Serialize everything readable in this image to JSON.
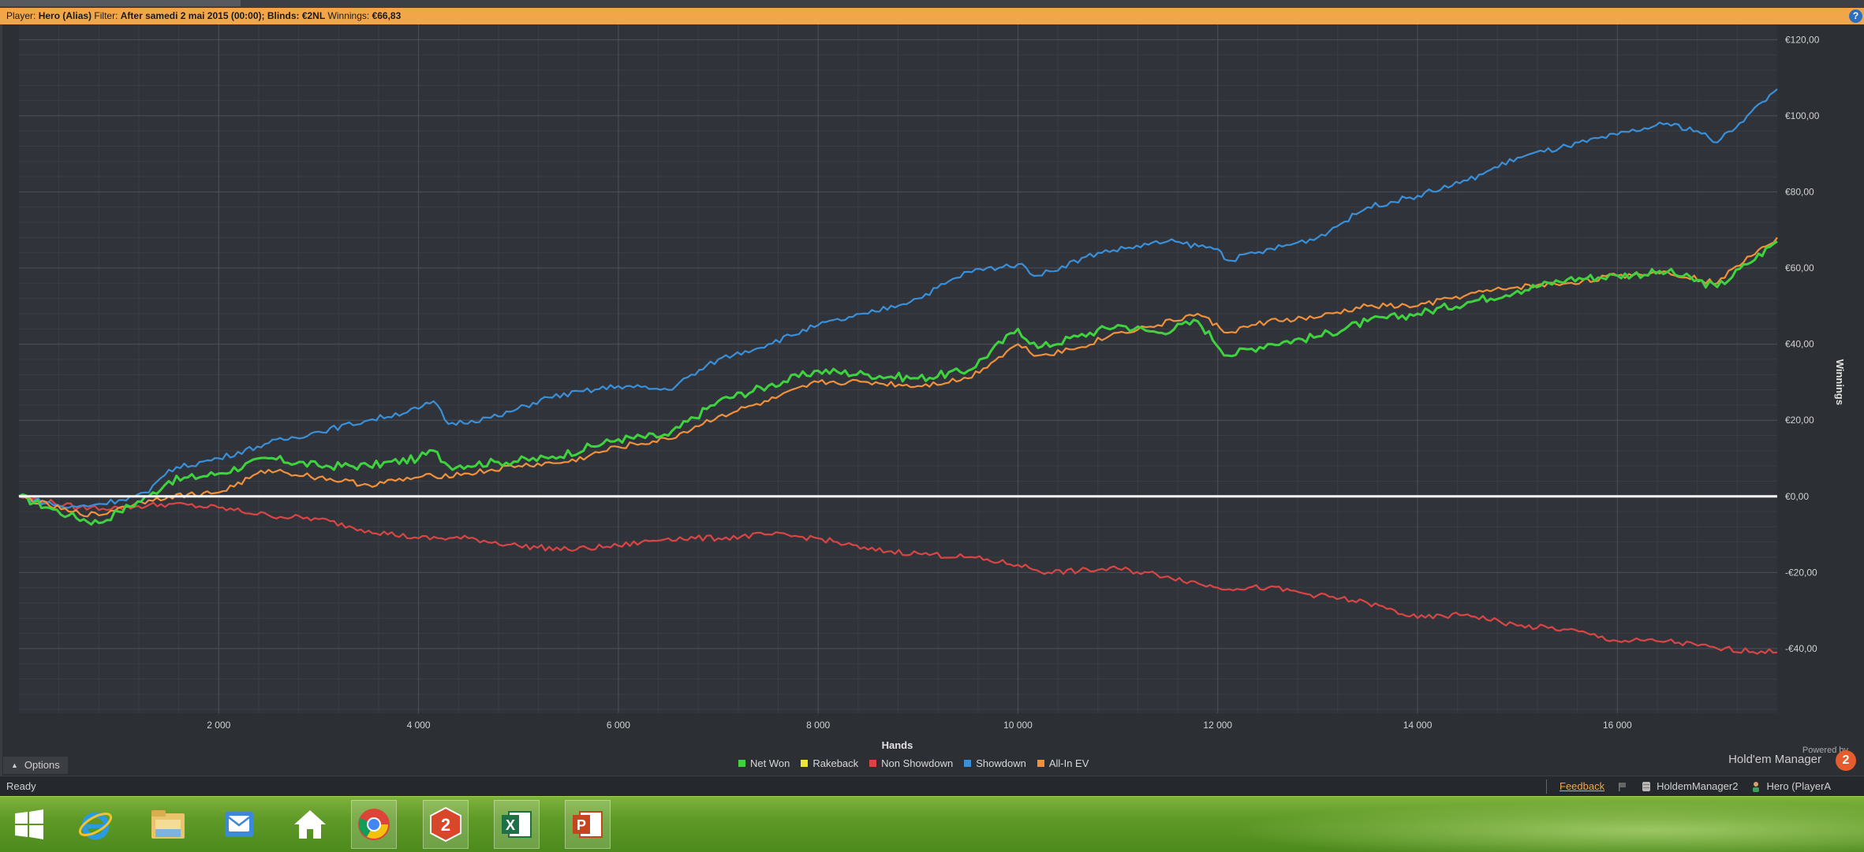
{
  "filter_bar": {
    "player_label": "Player:",
    "player_value": "Hero (Alias)",
    "filter_label": "Filter:",
    "filter_value": "After samedi 2 mai 2015 (00:00); Blinds: €2NL",
    "winnings_label": "Winnings:",
    "winnings_value": "€66,83"
  },
  "help_icon": "?",
  "chart_data": {
    "type": "line",
    "title": "",
    "xlabel": "Hands",
    "ylabel": "Winnings",
    "xlim": [
      0,
      17600
    ],
    "ylim": [
      -57,
      124
    ],
    "x_ticks": [
      2000,
      4000,
      6000,
      8000,
      10000,
      12000,
      14000,
      16000
    ],
    "x_tick_labels": [
      "2 000",
      "4 000",
      "6 000",
      "8 000",
      "10 000",
      "12 000",
      "14 000",
      "16 000"
    ],
    "y_ticks": [
      120,
      100,
      80,
      60,
      40,
      20,
      0,
      -20,
      -40
    ],
    "y_tick_labels": [
      "€120,00",
      "€100,00",
      "€80,00",
      "€60,00",
      "€40,00",
      "€20,00",
      "€0,00",
      "-€20,00",
      "-€40,00"
    ],
    "grid": true,
    "legend_position": "bottom",
    "series": [
      {
        "name": "Net Won",
        "color": "#3fd23f",
        "x": [
          0,
          300,
          500,
          800,
          1000,
          1300,
          1500,
          2000,
          2500,
          3000,
          3500,
          4000,
          4150,
          4300,
          4800,
          5300,
          6000,
          6500,
          7000,
          7500,
          8000,
          8500,
          9000,
          9500,
          10000,
          10200,
          10600,
          11000,
          11400,
          11800,
          12100,
          12500,
          13000,
          13500,
          14000,
          14500,
          15000,
          15500,
          16000,
          16500,
          17000,
          17300,
          17600
        ],
        "y": [
          0,
          -3,
          -5,
          -7,
          -4,
          0,
          4,
          6,
          10,
          8,
          8,
          10,
          12,
          8,
          9,
          10,
          15,
          16,
          25,
          29,
          33,
          32,
          31,
          33,
          44,
          39,
          42,
          45,
          43,
          46,
          37,
          40,
          42,
          46,
          48,
          51,
          54,
          57,
          58,
          59,
          55,
          61,
          67
        ]
      },
      {
        "name": "Rakeback",
        "color": "#f0e43a",
        "x": [
          0,
          17600
        ],
        "y": [
          0,
          0
        ]
      },
      {
        "name": "Non Showdown",
        "color": "#d94545",
        "x": [
          0,
          600,
          1000,
          1500,
          2000,
          2500,
          3000,
          3500,
          4000,
          4500,
          5000,
          5500,
          6000,
          6500,
          7000,
          7500,
          8000,
          8500,
          9000,
          9500,
          10000,
          10300,
          11000,
          11500,
          12000,
          12500,
          13000,
          13500,
          14000,
          14500,
          15000,
          15500,
          16000,
          16500,
          17000,
          17600
        ],
        "y": [
          0,
          -3,
          -3,
          -2,
          -3,
          -5,
          -6,
          -9,
          -11,
          -11,
          -13,
          -14,
          -13,
          -11,
          -11,
          -10,
          -11,
          -14,
          -15,
          -16,
          -18,
          -20,
          -19,
          -21,
          -24,
          -24,
          -26,
          -28,
          -32,
          -31,
          -34,
          -35,
          -38,
          -38,
          -40,
          -41
        ]
      },
      {
        "name": "Showdown",
        "color": "#3a8fd9",
        "x": [
          0,
          500,
          800,
          1000,
          1300,
          1500,
          2000,
          2500,
          3000,
          3500,
          4000,
          4150,
          4300,
          4800,
          5300,
          6000,
          6500,
          7000,
          7500,
          8000,
          8500,
          9000,
          9500,
          10000,
          10200,
          10800,
          11500,
          12000,
          12100,
          13000,
          13500,
          14000,
          14500,
          15000,
          15500,
          16000,
          16500,
          16800,
          17000,
          17300,
          17600
        ],
        "y": [
          0,
          -3,
          -2,
          -1,
          1,
          7,
          10,
          14,
          17,
          20,
          23,
          25,
          19,
          21,
          26,
          29,
          28,
          36,
          40,
          45,
          48,
          52,
          59,
          61,
          58,
          64,
          67,
          65,
          62,
          68,
          76,
          79,
          83,
          89,
          92,
          95,
          98,
          96,
          93,
          100,
          107
        ]
      },
      {
        "name": "All-In EV",
        "color": "#f0903a",
        "x": [
          0,
          500,
          800,
          1000,
          1300,
          1500,
          2000,
          2500,
          3000,
          3500,
          4000,
          4500,
          5000,
          5500,
          6000,
          6500,
          7000,
          7500,
          8000,
          8500,
          9000,
          9500,
          10000,
          10200,
          10600,
          11000,
          11400,
          11800,
          12100,
          12500,
          13000,
          13500,
          14000,
          14500,
          15000,
          15500,
          16000,
          16500,
          17000,
          17300,
          17600
        ],
        "y": [
          0,
          -4,
          -5,
          -3,
          -1,
          0,
          1,
          7,
          5,
          3,
          5,
          6,
          8,
          9,
          13,
          15,
          21,
          25,
          30,
          30,
          29,
          31,
          40,
          37,
          39,
          43,
          45,
          48,
          43,
          46,
          47,
          50,
          50,
          53,
          55,
          56,
          58,
          59,
          56,
          63,
          68
        ]
      }
    ]
  },
  "legend": [
    "Net Won",
    "Rakeback",
    "Non Showdown",
    "Showdown",
    "All-In EV"
  ],
  "options_label": "Options",
  "powered_by": {
    "line1": "Powered by",
    "line2": "Hold'em Manager",
    "badge": "2"
  },
  "status": {
    "ready": "Ready",
    "feedback": "Feedback",
    "app": "HoldemManager2",
    "player": "Hero (PlayerA"
  },
  "taskbar": {
    "items": [
      "windows-start",
      "internet-explorer",
      "file-explorer",
      "outlook",
      "home",
      "chrome",
      "holdem-manager",
      "excel",
      "powerpoint"
    ],
    "hm_glyph": "2",
    "excel_glyph": "X",
    "ppt_glyph": "P"
  }
}
